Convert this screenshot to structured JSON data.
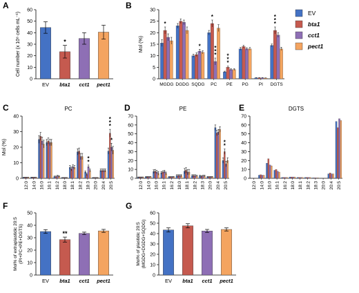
{
  "colors": {
    "EV": "#4472C4",
    "bta1": "#C55A4F",
    "cct1": "#8E6FB5",
    "pect1": "#F4A460"
  },
  "chart_data": [
    {
      "id": "A",
      "panel_letter": "A",
      "type": "bar",
      "ylabel": "Cell number (x 10⁶ cells mL⁻¹)",
      "ylim": [
        0,
        60
      ],
      "yticks": [
        0,
        10,
        20,
        30,
        40,
        50,
        60
      ],
      "categories": [
        "EV",
        "bta1",
        "cct1",
        "pect1"
      ],
      "category_italic": [
        false,
        true,
        true,
        true
      ],
      "values": [
        44.5,
        23.5,
        35,
        40.5
      ],
      "errors": [
        5,
        5.5,
        5,
        6
      ],
      "stars": [
        "",
        "*",
        "",
        ""
      ]
    },
    {
      "id": "B",
      "panel_letter": "B",
      "type": "bar",
      "ylabel": "Mol (%)",
      "ylim": [
        0,
        30
      ],
      "yticks": [
        0,
        5,
        10,
        15,
        20,
        25,
        30
      ],
      "categories": [
        "MGDG",
        "DGDG",
        "SQDG",
        "PC",
        "PE",
        "PG",
        "PI",
        "DGTS"
      ],
      "legend": [
        "EV",
        "bta1",
        "cct1",
        "pect1"
      ],
      "legend_italic": [
        false,
        true,
        true,
        true
      ],
      "series": [
        {
          "name": "EV",
          "values": [
            15.5,
            23,
            10,
            20,
            3,
            13,
            0.4,
            14.5
          ],
          "errors": [
            1.5,
            1,
            0.7,
            1,
            0.3,
            0.6,
            0.1,
            0.6
          ]
        },
        {
          "name": "bta1",
          "values": [
            21,
            25,
            10.5,
            24,
            5,
            14,
            0.4,
            21
          ],
          "errors": [
            1.5,
            1,
            0.8,
            1.5,
            0.5,
            0.5,
            0.1,
            1.5
          ]
        },
        {
          "name": "cct1",
          "values": [
            18,
            24.5,
            12,
            7.5,
            4,
            13,
            0.4,
            19
          ],
          "errors": [
            1.5,
            1,
            0.8,
            1.5,
            0.4,
            0.5,
            0.1,
            1
          ]
        },
        {
          "name": "pect1",
          "values": [
            16.5,
            21,
            11.5,
            22,
            4,
            13,
            0.3,
            13
          ],
          "errors": [
            1.5,
            1.5,
            0.7,
            1.5,
            0.4,
            0.6,
            0.1,
            0.7
          ]
        }
      ],
      "stars": [
        {
          "cat": 0,
          "series": 1,
          "text": "*"
        },
        {
          "cat": 2,
          "series": 2,
          "text": "*"
        },
        {
          "cat": 3,
          "series": 1,
          "text": "*"
        },
        {
          "cat": 3,
          "series": 2,
          "text": "***"
        },
        {
          "cat": 4,
          "series": 1,
          "text": "***"
        },
        {
          "cat": 7,
          "series": 1,
          "text": "***"
        }
      ]
    },
    {
      "id": "C",
      "panel_letter": "C",
      "type": "bar",
      "title": "PC",
      "ylabel": "Mol (%)",
      "ylim": [
        0,
        40
      ],
      "yticks": [
        0,
        10,
        20,
        30,
        40
      ],
      "categories": [
        "12:0",
        "14:0",
        "16:0",
        "16:1",
        "16:2",
        "18:0",
        "18:1",
        "18:2",
        "18:3",
        "20:0",
        "20:4",
        "20:5"
      ],
      "series": [
        {
          "name": "EV",
          "values": [
            0.5,
            0.5,
            25,
            23,
            1,
            0.3,
            7,
            17,
            4,
            0.3,
            5,
            17.5
          ],
          "errors": [
            0.2,
            0.2,
            2.5,
            2,
            0.4,
            0.2,
            1.2,
            2,
            0.8,
            0.2,
            1,
            2
          ]
        },
        {
          "name": "bta1",
          "values": [
            0.5,
            0.5,
            27,
            24,
            1,
            0.3,
            6,
            17.5,
            2.5,
            0.3,
            5,
            29
          ],
          "errors": [
            0.2,
            0.2,
            2.5,
            2,
            0.4,
            0.2,
            1.2,
            2,
            0.7,
            0.2,
            1,
            2.5
          ]
        },
        {
          "name": "cct1",
          "values": [
            0.5,
            0.5,
            24,
            23,
            1.5,
            0.3,
            7.5,
            14,
            7.5,
            0.3,
            5,
            20
          ],
          "errors": [
            0.2,
            0.2,
            2.5,
            2,
            0.4,
            0.2,
            1.2,
            2,
            1,
            0.2,
            1,
            2.5
          ]
        },
        {
          "name": "pect1",
          "values": [
            0.5,
            0.5,
            22,
            23,
            1.2,
            0.3,
            7,
            14,
            5,
            0.3,
            5,
            18
          ],
          "errors": [
            0.2,
            0.2,
            2.5,
            2,
            0.4,
            0.2,
            1.2,
            2,
            0.9,
            0.2,
            1,
            2.5
          ]
        }
      ],
      "stars": [
        {
          "cat": 8,
          "series": 2,
          "text": "**"
        },
        {
          "cat": 11,
          "series": 1,
          "text": "***"
        },
        {
          "cat": 11,
          "series": 2,
          "text": "*"
        }
      ]
    },
    {
      "id": "D",
      "panel_letter": "D",
      "type": "bar",
      "title": "PE",
      "ylabel": "",
      "ylim": [
        0,
        70
      ],
      "yticks": [
        0,
        10,
        20,
        30,
        40,
        50,
        60,
        70
      ],
      "categories": [
        "12:0",
        "14:0",
        "16:0",
        "16:1",
        "16:2",
        "18:0",
        "18:1",
        "18:2",
        "18:3",
        "20:0",
        "20:4",
        "20:5"
      ],
      "series": [
        {
          "name": "EV",
          "values": [
            1,
            1.5,
            7.5,
            6,
            1.5,
            3,
            8,
            3,
            2.5,
            1.5,
            57,
            20
          ],
          "errors": [
            0.5,
            0.5,
            2,
            1.5,
            0.5,
            1,
            3,
            1,
            1,
            0.5,
            3,
            3
          ]
        },
        {
          "name": "bta1",
          "values": [
            1,
            1.5,
            8,
            7,
            1.5,
            3,
            9,
            3,
            2,
            1.5,
            51,
            30
          ],
          "errors": [
            0.5,
            0.5,
            2,
            1.5,
            0.5,
            1,
            3,
            1,
            1,
            0.5,
            3,
            3
          ]
        },
        {
          "name": "cct1",
          "values": [
            1,
            1.5,
            7,
            7.5,
            1.5,
            3,
            7,
            3,
            2.5,
            1.5,
            52,
            16
          ],
          "errors": [
            0.5,
            0.5,
            2,
            1.5,
            0.5,
            1,
            3,
            1,
            1,
            0.5,
            3,
            3
          ]
        },
        {
          "name": "pect1",
          "values": [
            1,
            1.5,
            5.5,
            5.5,
            1.5,
            3,
            7,
            2.5,
            2.5,
            1.5,
            55,
            20
          ],
          "errors": [
            0.5,
            0.5,
            2,
            1.5,
            0.5,
            1,
            3,
            1,
            1,
            0.5,
            3,
            3
          ]
        }
      ],
      "stars": [
        {
          "cat": 11,
          "series": 1,
          "text": "**"
        }
      ]
    },
    {
      "id": "E",
      "panel_letter": "E",
      "type": "bar",
      "title": "DGTS",
      "ylabel": "",
      "ylim": [
        0,
        70
      ],
      "yticks": [
        0,
        10,
        20,
        30,
        40,
        50,
        60,
        70
      ],
      "categories": [
        "12:0",
        "14:0",
        "16:0",
        "16:1",
        "16:2",
        "18:0",
        "18:1",
        "18:2",
        "18:3",
        "20:0",
        "20:4",
        "20:5"
      ],
      "series": [
        {
          "name": "EV",
          "values": [
            0.3,
            3.5,
            17,
            9,
            1,
            1.5,
            1,
            1,
            0.5,
            0.3,
            5,
            64
          ]
        },
        {
          "name": "bta1",
          "values": [
            0.3,
            4,
            22,
            10,
            1,
            1.5,
            1,
            1,
            0.5,
            0.3,
            6,
            57
          ]
        },
        {
          "name": "cct1",
          "values": [
            0.3,
            3.5,
            15,
            8,
            1,
            1.5,
            1,
            1,
            0.5,
            0.3,
            5,
            67
          ]
        },
        {
          "name": "pect1",
          "values": [
            0.3,
            3.5,
            14,
            7,
            1,
            1.5,
            1,
            1,
            0.5,
            0.3,
            5,
            65
          ]
        }
      ],
      "stars": []
    },
    {
      "id": "F",
      "panel_letter": "F",
      "type": "bar",
      "ylabel": "Mol% of extraplastidic 20:5",
      "ylabel2": "(PI+PC+PE+DGTS)",
      "ylim": [
        0,
        50
      ],
      "yticks": [
        0,
        10,
        20,
        30,
        40,
        50
      ],
      "categories": [
        "EV",
        "bta1",
        "cct1",
        "pect1"
      ],
      "category_italic": [
        false,
        true,
        true,
        true
      ],
      "values": [
        35,
        28.5,
        33.5,
        35.5
      ],
      "errors": [
        1.5,
        2,
        1,
        1.2
      ],
      "stars": [
        "",
        "**",
        "",
        ""
      ]
    },
    {
      "id": "G",
      "panel_letter": "G",
      "type": "bar",
      "ylabel": "Mol% of plastidic 20:5",
      "ylabel2": "(MGDG+DGDG+SQDG)",
      "ylim": [
        0,
        60
      ],
      "yticks": [
        0,
        10,
        20,
        30,
        40,
        50,
        60
      ],
      "categories": [
        "EV",
        "bta1",
        "cct1",
        "pect1"
      ],
      "category_italic": [
        false,
        true,
        true,
        true
      ],
      "values": [
        43.5,
        47.5,
        42.5,
        44
      ],
      "errors": [
        2,
        2,
        1.5,
        1.5
      ],
      "stars": [
        "",
        "",
        "",
        ""
      ]
    }
  ]
}
